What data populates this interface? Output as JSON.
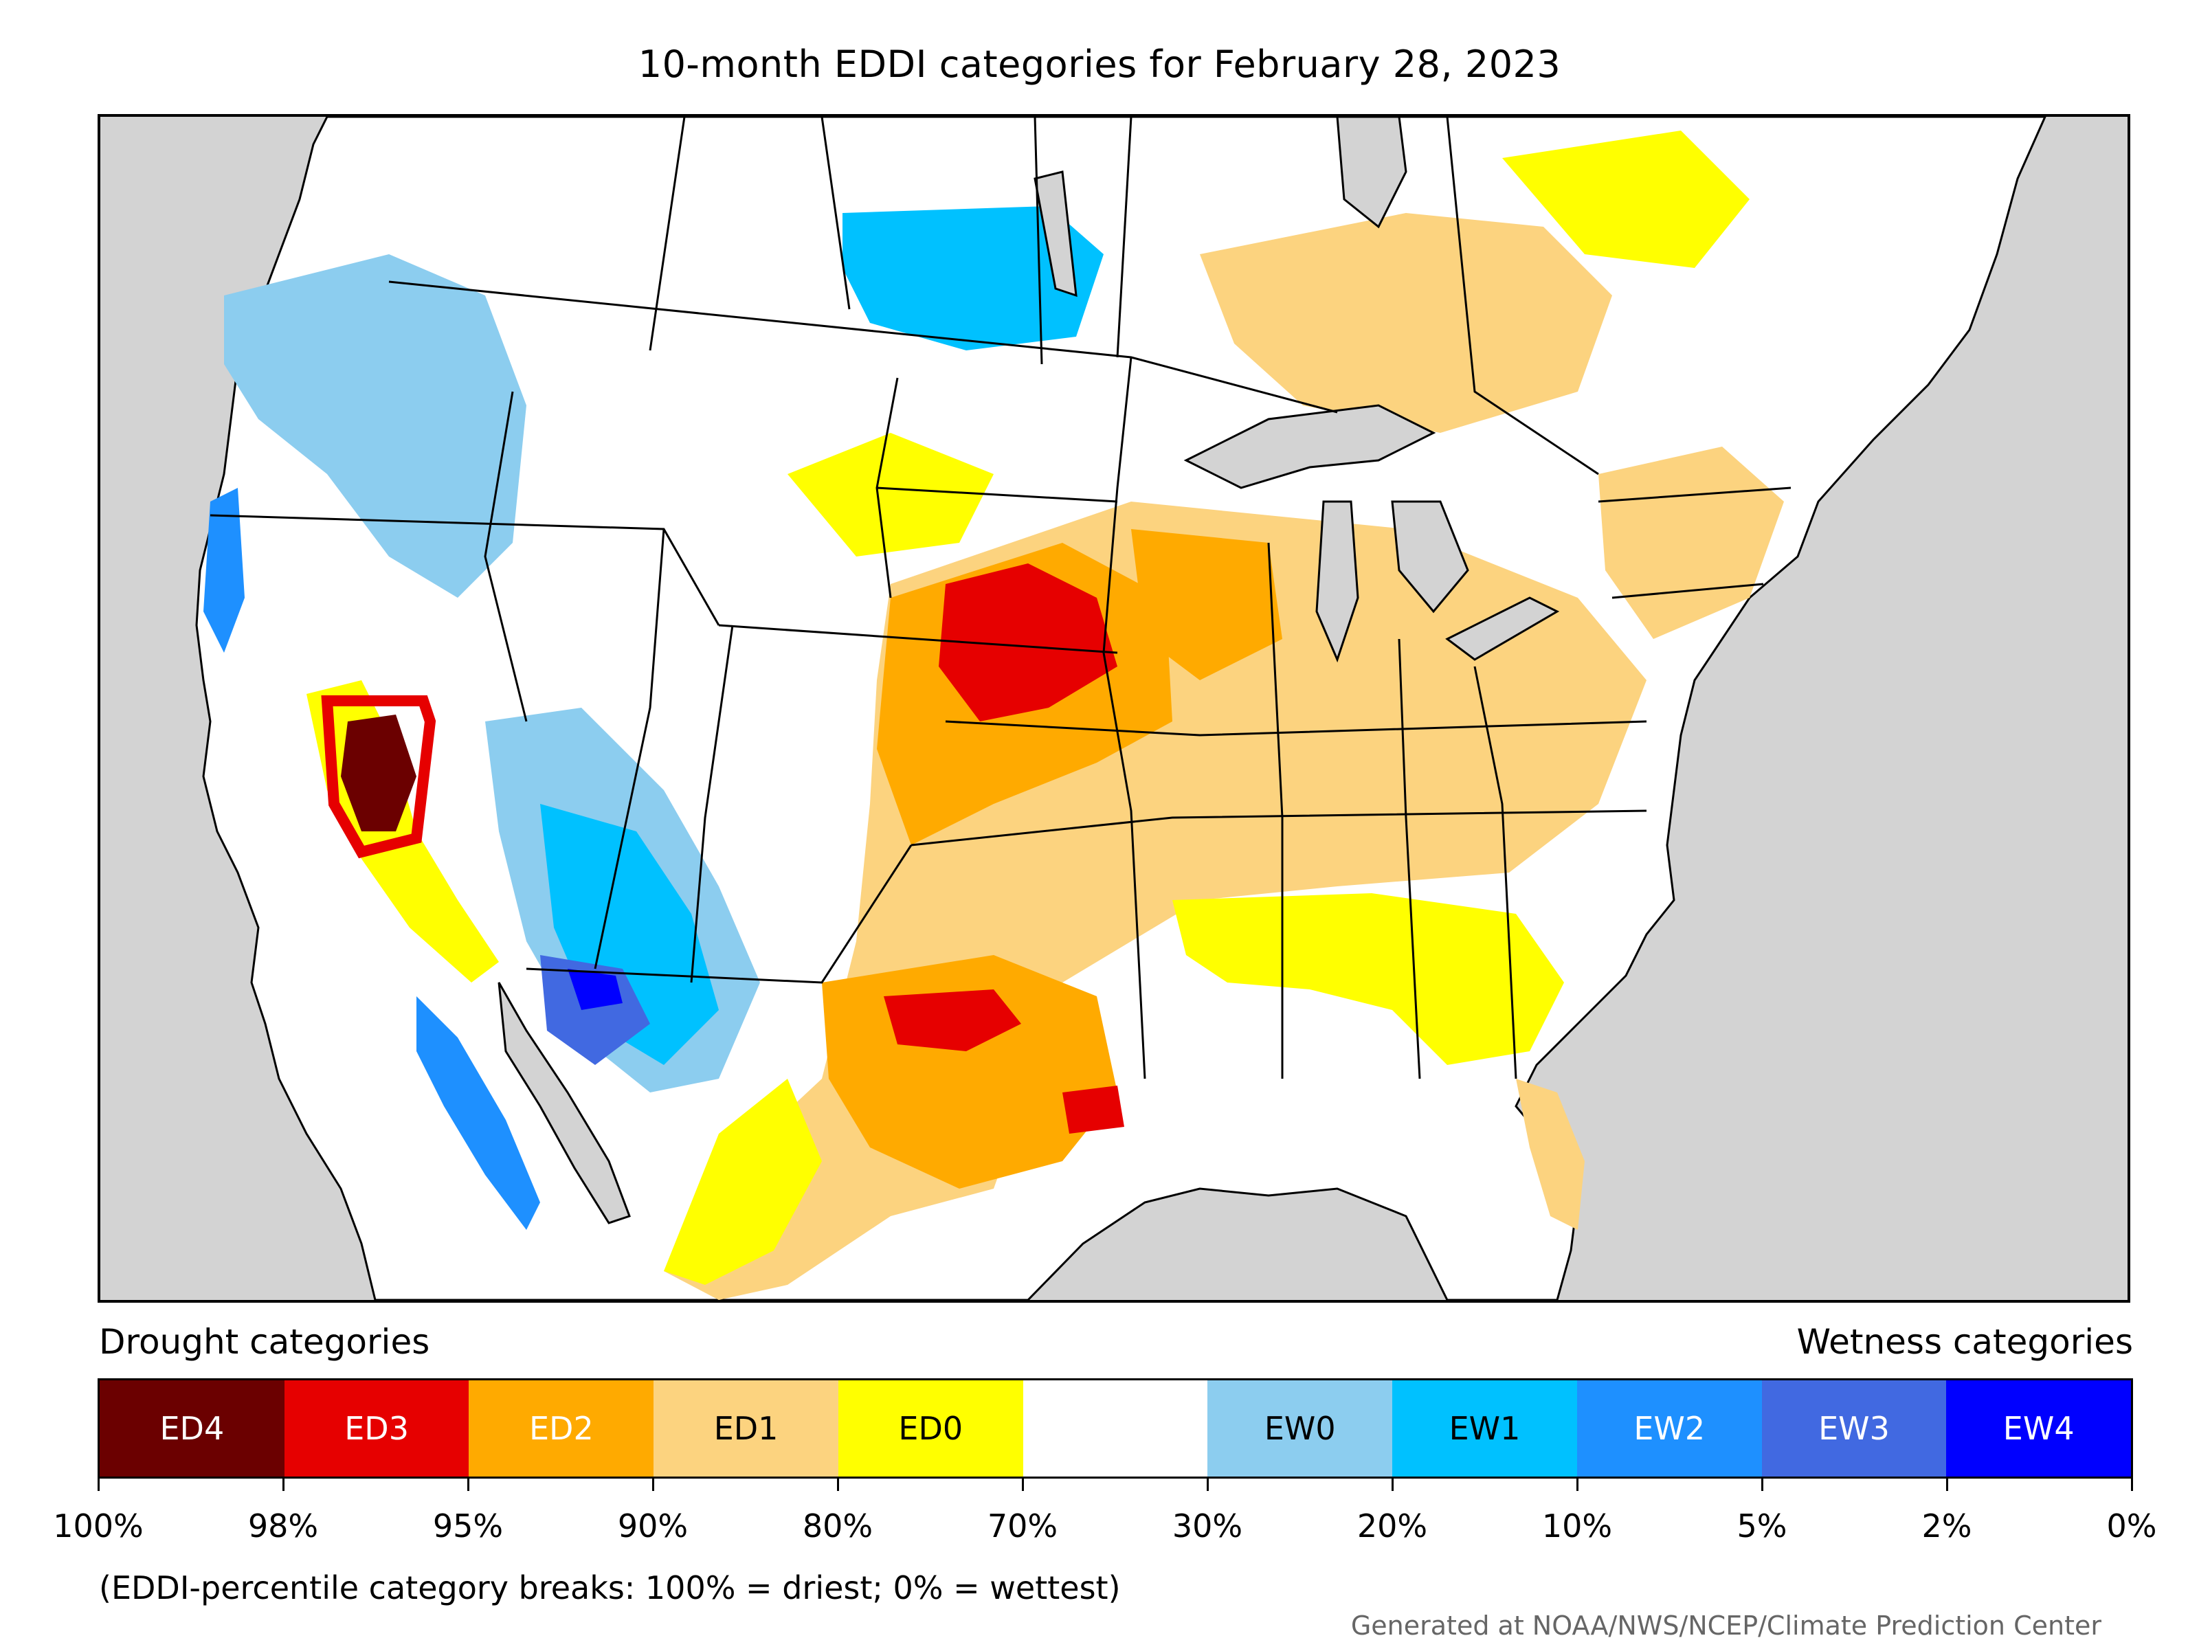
{
  "title": "10-month EDDI categories for February 28, 2023",
  "legend": {
    "drought_heading": "Drought categories",
    "wetness_heading": "Wetness categories",
    "categories": [
      {
        "label": "ED4",
        "color": "#6b0000",
        "text_color": "#ffffff"
      },
      {
        "label": "ED3",
        "color": "#e60000",
        "text_color": "#ffffff"
      },
      {
        "label": "ED2",
        "color": "#ffaa00",
        "text_color": "#ffffff"
      },
      {
        "label": "ED1",
        "color": "#fcd37f",
        "text_color": "#000000"
      },
      {
        "label": "ED0",
        "color": "#ffff00",
        "text_color": "#000000"
      },
      {
        "label": "",
        "color": "#ffffff",
        "text_color": "#000000"
      },
      {
        "label": "EW0",
        "color": "#8ccdef",
        "text_color": "#000000"
      },
      {
        "label": "EW1",
        "color": "#00c1ff",
        "text_color": "#000000"
      },
      {
        "label": "EW2",
        "color": "#1e90ff",
        "text_color": "#ffffff"
      },
      {
        "label": "EW3",
        "color": "#4169e1",
        "text_color": "#ffffff"
      },
      {
        "label": "EW4",
        "color": "#0000ff",
        "text_color": "#ffffff"
      }
    ],
    "ticks": [
      "100%",
      "98%",
      "95%",
      "90%",
      "80%",
      "70%",
      "30%",
      "20%",
      "10%",
      "5%",
      "2%",
      "0%"
    ]
  },
  "note": "(EDDI-percentile category breaks: 100% = driest; 0% = wettest)",
  "credit": "Generated at NOAA/NWS/NCEP/Climate Prediction Center"
}
